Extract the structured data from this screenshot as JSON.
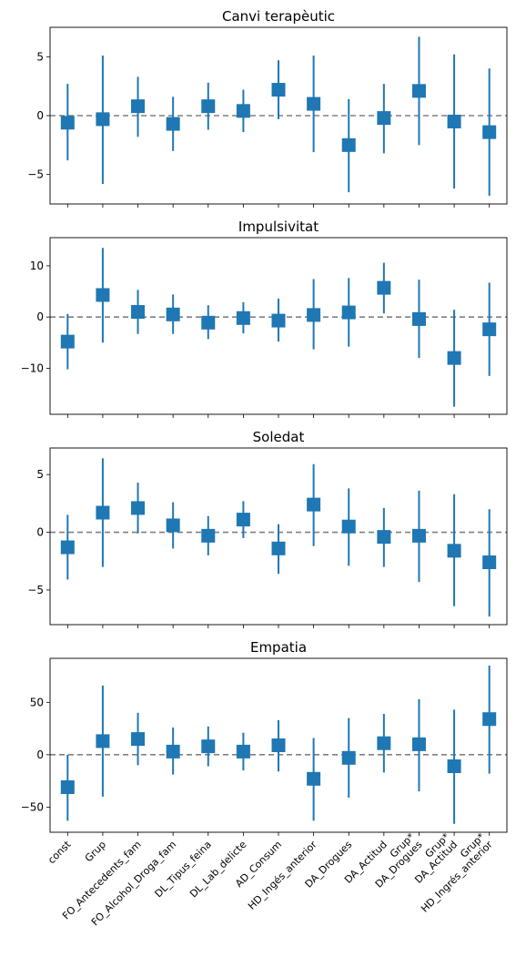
{
  "chart_data": {
    "type": "errorbar",
    "categories": [
      "const",
      "Grup",
      "FO_Antecedents_fam",
      "FO_Alcohol_Droga_fam",
      "DL_Tipus_feina",
      "DL_Lab_delicte",
      "AD_Consum",
      "HD_Ingés_anterior",
      "DA_Drogues",
      "DA_Actitud",
      "Grup*\nDA_Drogues",
      "Grup*\nDA_Actitud",
      "Grup*\nHD_Ingrés_anterior"
    ],
    "colors": {
      "series": "#1f77b4",
      "zero_line": "#808080"
    },
    "grid": false,
    "panels": [
      {
        "title": "Canvi terapèutic",
        "ylim": [
          -7.5,
          7.5
        ],
        "yticks": [
          -5,
          0,
          5
        ],
        "estimate": [
          -0.6,
          -0.3,
          0.8,
          -0.7,
          0.8,
          0.4,
          2.2,
          1.0,
          -2.5,
          -0.2,
          2.1,
          -0.5,
          -1.4
        ],
        "lower": [
          -3.8,
          -5.8,
          -1.8,
          -3.0,
          -1.2,
          -1.4,
          -0.3,
          -3.1,
          -6.5,
          -3.2,
          -2.5,
          -6.2,
          -6.8
        ],
        "upper": [
          2.7,
          5.1,
          3.3,
          1.6,
          2.8,
          2.2,
          4.7,
          5.1,
          1.4,
          2.7,
          6.7,
          5.2,
          4.0
        ]
      },
      {
        "title": "Impulsivitat",
        "ylim": [
          -19,
          15.5
        ],
        "yticks": [
          -10,
          0,
          10
        ],
        "estimate": [
          -4.8,
          4.3,
          1.0,
          0.5,
          -1.1,
          -0.2,
          -0.7,
          0.4,
          0.9,
          5.7,
          -0.4,
          -8.0,
          -2.4
        ],
        "lower": [
          -10.2,
          -5.0,
          -3.3,
          -3.3,
          -4.3,
          -3.2,
          -4.8,
          -6.3,
          -5.8,
          0.7,
          -8.0,
          -17.5,
          -11.5
        ],
        "upper": [
          0.6,
          13.5,
          5.3,
          4.4,
          2.3,
          2.9,
          3.6,
          7.4,
          7.6,
          10.6,
          7.3,
          1.4,
          6.7
        ]
      },
      {
        "title": "Soledat",
        "ylim": [
          -8,
          7.3
        ],
        "yticks": [
          -5,
          0,
          5
        ],
        "estimate": [
          -1.3,
          1.7,
          2.1,
          0.6,
          -0.3,
          1.1,
          -1.4,
          2.4,
          0.5,
          -0.4,
          -0.3,
          -1.6,
          -2.6
        ],
        "lower": [
          -4.1,
          -3.0,
          -0.1,
          -1.4,
          -2.0,
          -0.5,
          -3.6,
          -1.2,
          -2.9,
          -3.0,
          -4.3,
          -6.4,
          -7.3
        ],
        "upper": [
          1.5,
          6.4,
          4.3,
          2.6,
          1.4,
          2.7,
          0.7,
          5.9,
          3.8,
          2.1,
          3.6,
          3.3,
          2.0
        ]
      },
      {
        "title": "Empatia",
        "ylim": [
          -74,
          92
        ],
        "yticks": [
          -50,
          0,
          50
        ],
        "estimate": [
          -31,
          13,
          15,
          3,
          8,
          3,
          9,
          -23,
          -3,
          11,
          10,
          -11,
          34
        ],
        "lower": [
          -63,
          -40,
          -10,
          -19,
          -11,
          -15,
          -16,
          -63,
          -41,
          -17,
          -35,
          -66,
          -18
        ],
        "upper": [
          0,
          66,
          40,
          26,
          27,
          21,
          33,
          16,
          35,
          39,
          53,
          43,
          85
        ]
      }
    ]
  }
}
